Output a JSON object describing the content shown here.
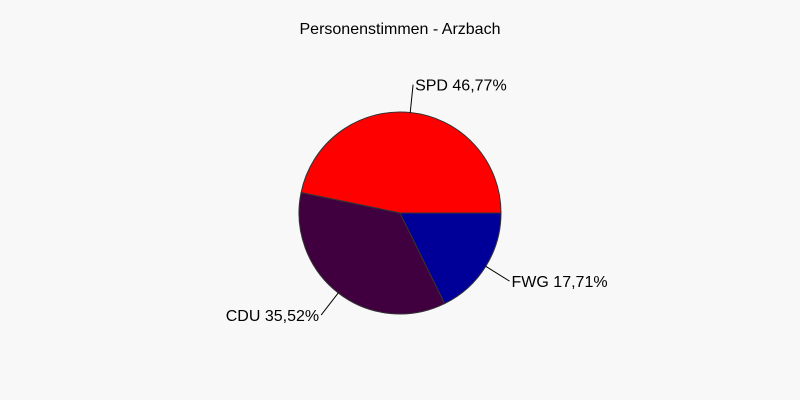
{
  "chart_data": {
    "type": "pie",
    "title": "Personenstimmen - Arzbach",
    "slices": [
      {
        "label": "SPD 46,77%",
        "value": 46.77,
        "color": "#ff0000"
      },
      {
        "label": "CDU 35,52%",
        "value": 35.52,
        "color": "#400040"
      },
      {
        "label": "FWG 17,71%",
        "value": 17.71,
        "color": "#000099"
      }
    ]
  }
}
